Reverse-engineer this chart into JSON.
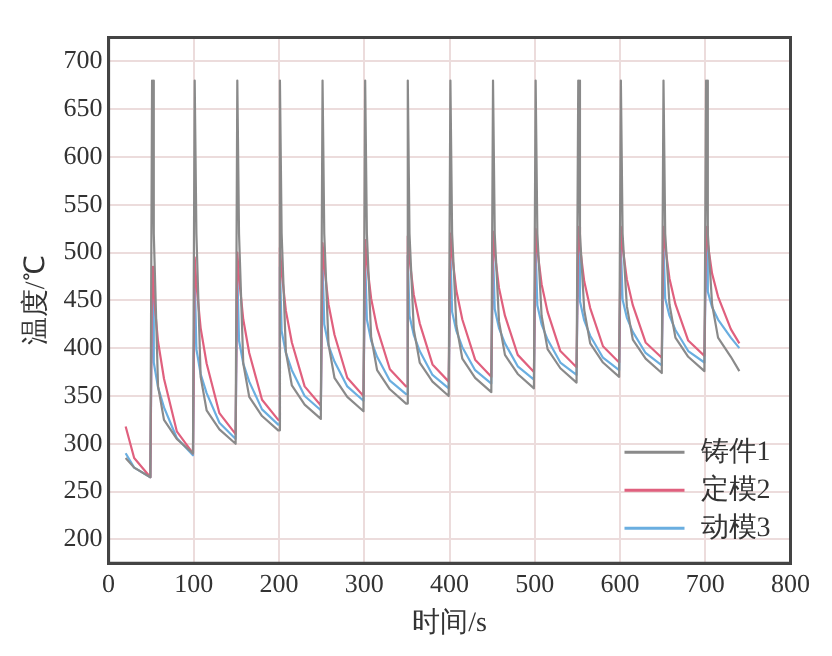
{
  "chart_data": {
    "type": "line",
    "xlabel": "时间/s",
    "ylabel": "温度/℃",
    "x": [
      20,
      30,
      49,
      51,
      53,
      58,
      65,
      80,
      99,
      101,
      103,
      108,
      115,
      130,
      149,
      151,
      153,
      158,
      165,
      180,
      199,
      201,
      203,
      208,
      215,
      230,
      249,
      251,
      253,
      258,
      265,
      280,
      299,
      301,
      303,
      308,
      315,
      330,
      349,
      351,
      353,
      358,
      365,
      380,
      399,
      401,
      403,
      408,
      415,
      430,
      449,
      451,
      453,
      458,
      465,
      480,
      499,
      501,
      503,
      508,
      515,
      530,
      549,
      551,
      553,
      558,
      565,
      580,
      599,
      601,
      603,
      608,
      615,
      630,
      649,
      651,
      653,
      658,
      665,
      680,
      699,
      701,
      703,
      708,
      715,
      730,
      740
    ],
    "series": [
      {
        "name": "铸件1",
        "color": "#8a8a8a",
        "values": [
          285,
          275,
          265,
          680,
          520,
          360,
          325,
          305,
          290,
          680,
          520,
          370,
          335,
          315,
          300,
          680,
          520,
          384,
          349,
          329,
          314,
          680,
          520,
          396,
          361,
          341,
          326,
          680,
          520,
          404,
          369,
          349,
          334,
          680,
          520,
          412,
          377,
          357,
          342,
          680,
          520,
          420,
          385,
          365,
          350,
          680,
          520,
          424,
          389,
          369,
          354,
          680,
          520,
          428,
          393,
          373,
          358,
          680,
          520,
          434,
          399,
          379,
          364,
          680,
          520,
          440,
          405,
          385,
          370,
          680,
          520,
          444,
          409,
          389,
          374,
          680,
          520,
          446,
          411,
          391,
          376,
          680,
          520,
          446,
          411,
          391,
          376
        ]
      },
      {
        "name": "定模2",
        "color": "#e0607e",
        "values": [
          318,
          285,
          265,
          485,
          456,
          407,
          368,
          313,
          290,
          495,
          467,
          421,
          384,
          332,
          310,
          500,
          474,
          430,
          395,
          346,
          325,
          505,
          480,
          439,
          406,
          360,
          340,
          510,
          486,
          446,
          414,
          369,
          350,
          513,
          490,
          452,
          421,
          378,
          360,
          517,
          494,
          456,
          426,
          383,
          365,
          520,
          498,
          460,
          430,
          388,
          370,
          522,
          500,
          463,
          434,
          393,
          375,
          525,
          503,
          467,
          438,
          397,
          380,
          527,
          506,
          470,
          442,
          402,
          385,
          527,
          506,
          472,
          445,
          406,
          390,
          527,
          507,
          473,
          446,
          408,
          392,
          527,
          509,
          478,
          454,
          420,
          405
        ]
      },
      {
        "name": "动模3",
        "color": "#6aaee0",
        "values": [
          290,
          275,
          265,
          465,
          385,
          359,
          338,
          306,
          288,
          475,
          399,
          373,
          353,
          322,
          305,
          480,
          408,
          384,
          365,
          336,
          320,
          485,
          418,
          395,
          377,
          350,
          335,
          490,
          425,
          403,
          386,
          360,
          345,
          493,
          430,
          408,
          391,
          366,
          352,
          497,
          434,
          414,
          397,
          372,
          358,
          500,
          438,
          418,
          401,
          377,
          363,
          502,
          441,
          421,
          405,
          381,
          367,
          505,
          445,
          425,
          409,
          385,
          372,
          507,
          449,
          429,
          413,
          390,
          377,
          507,
          451,
          432,
          417,
          395,
          382,
          507,
          452,
          434,
          419,
          397,
          385,
          507,
          459,
          443,
          430,
          411,
          400
        ]
      }
    ],
    "xlim": [
      0,
      800
    ],
    "xticks": [
      0,
      100,
      200,
      300,
      400,
      500,
      600,
      700,
      800
    ],
    "ylim": [
      175,
      725
    ],
    "yticks": [
      200,
      250,
      300,
      350,
      400,
      450,
      500,
      550,
      600,
      650,
      700
    ],
    "grid": true,
    "legend": "bottom right",
    "marker": "none",
    "line_style": "solid"
  }
}
